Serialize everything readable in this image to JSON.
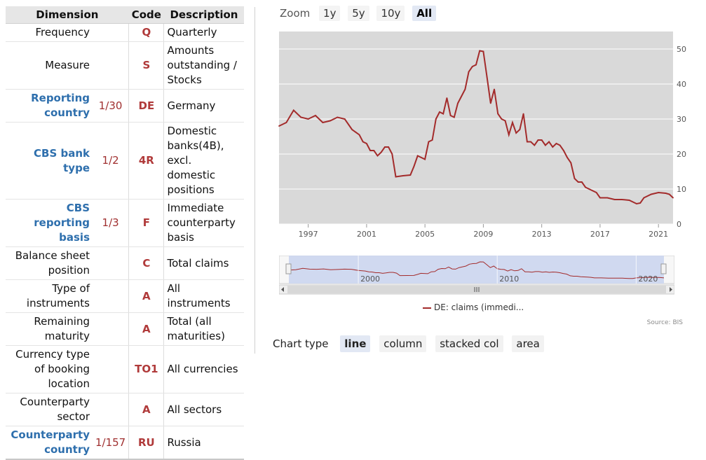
{
  "table": {
    "headers": {
      "dimension": "Dimension",
      "code": "Code",
      "description": "Description"
    },
    "rows": [
      {
        "dimension": "Frequency",
        "position": "",
        "code": "Q",
        "description": "Quarterly",
        "link": false
      },
      {
        "dimension": "Measure",
        "position": "",
        "code": "S",
        "description": "Amounts outstanding / Stocks",
        "link": false
      },
      {
        "dimension": "Reporting country",
        "position": "1/30",
        "code": "DE",
        "description": "Germany",
        "link": true
      },
      {
        "dimension": "CBS bank type",
        "position": "1/2",
        "code": "4R",
        "description": "Domestic banks(4B), excl. domestic positions",
        "link": true
      },
      {
        "dimension": "CBS reporting basis",
        "position": "1/3",
        "code": "F",
        "description": "Immediate counterparty basis",
        "link": true
      },
      {
        "dimension": "Balance sheet position",
        "position": "",
        "code": "C",
        "description": "Total claims",
        "link": false
      },
      {
        "dimension": "Type of instruments",
        "position": "",
        "code": "A",
        "description": "All instruments",
        "link": false
      },
      {
        "dimension": "Remaining maturity",
        "position": "",
        "code": "A",
        "description": "Total (all maturities)",
        "link": false
      },
      {
        "dimension": "Currency type of booking location",
        "position": "",
        "code": "TO1",
        "description": "All currencies",
        "link": false
      },
      {
        "dimension": "Counterparty sector",
        "position": "",
        "code": "A",
        "description": "All sectors",
        "link": false
      },
      {
        "dimension": "Counterparty country",
        "position": "1/157",
        "code": "RU",
        "description": "Russia",
        "link": true
      }
    ]
  },
  "zoom": {
    "label": "Zoom",
    "buttons": [
      "1y",
      "5y",
      "10y",
      "All"
    ],
    "active": "All"
  },
  "chart_data": {
    "type": "line",
    "series": [
      {
        "name": "DE: claims (immedi...",
        "color": "#a32b2b",
        "points": [
          [
            1995.0,
            28.0
          ],
          [
            1995.5,
            29.0
          ],
          [
            1996.0,
            32.5
          ],
          [
            1996.5,
            30.5
          ],
          [
            1997.0,
            30.0
          ],
          [
            1997.5,
            31.0
          ],
          [
            1998.0,
            29.0
          ],
          [
            1998.5,
            29.5
          ],
          [
            1999.0,
            30.5
          ],
          [
            1999.5,
            30.0
          ],
          [
            2000.0,
            27.0
          ],
          [
            2000.5,
            25.5
          ],
          [
            2000.75,
            23.5
          ],
          [
            2001.0,
            23.0
          ],
          [
            2001.25,
            21.0
          ],
          [
            2001.5,
            21.0
          ],
          [
            2001.75,
            19.5
          ],
          [
            2002.0,
            20.5
          ],
          [
            2002.25,
            22.0
          ],
          [
            2002.5,
            22.0
          ],
          [
            2002.75,
            20.0
          ],
          [
            2003.0,
            13.5
          ],
          [
            2003.5,
            13.8
          ],
          [
            2004.0,
            14.0
          ],
          [
            2004.25,
            16.5
          ],
          [
            2004.5,
            19.5
          ],
          [
            2004.75,
            19.0
          ],
          [
            2005.0,
            18.5
          ],
          [
            2005.25,
            23.5
          ],
          [
            2005.5,
            24.0
          ],
          [
            2005.75,
            30.0
          ],
          [
            2006.0,
            32.0
          ],
          [
            2006.25,
            31.5
          ],
          [
            2006.5,
            36.0
          ],
          [
            2006.75,
            31.0
          ],
          [
            2007.0,
            30.5
          ],
          [
            2007.25,
            34.5
          ],
          [
            2007.5,
            36.5
          ],
          [
            2007.75,
            38.5
          ],
          [
            2008.0,
            43.5
          ],
          [
            2008.25,
            45.0
          ],
          [
            2008.5,
            45.5
          ],
          [
            2008.75,
            49.5
          ],
          [
            2009.0,
            49.3
          ],
          [
            2009.25,
            42.0
          ],
          [
            2009.5,
            34.5
          ],
          [
            2009.75,
            38.5
          ],
          [
            2010.0,
            31.5
          ],
          [
            2010.25,
            30.0
          ],
          [
            2010.5,
            29.5
          ],
          [
            2010.75,
            25.5
          ],
          [
            2011.0,
            29.0
          ],
          [
            2011.25,
            26.0
          ],
          [
            2011.5,
            27.0
          ],
          [
            2011.75,
            31.5
          ],
          [
            2012.0,
            23.5
          ],
          [
            2012.25,
            23.5
          ],
          [
            2012.5,
            22.5
          ],
          [
            2012.75,
            24.0
          ],
          [
            2013.0,
            24.0
          ],
          [
            2013.25,
            22.5
          ],
          [
            2013.5,
            23.5
          ],
          [
            2013.75,
            22.0
          ],
          [
            2014.0,
            23.0
          ],
          [
            2014.25,
            22.5
          ],
          [
            2014.5,
            21.0
          ],
          [
            2014.75,
            19.0
          ],
          [
            2015.0,
            17.5
          ],
          [
            2015.25,
            13.0
          ],
          [
            2015.5,
            12.0
          ],
          [
            2015.75,
            12.0
          ],
          [
            2016.0,
            10.5
          ],
          [
            2016.5,
            9.5
          ],
          [
            2016.75,
            9.0
          ],
          [
            2017.0,
            7.5
          ],
          [
            2017.5,
            7.5
          ],
          [
            2018.0,
            7.0
          ],
          [
            2018.5,
            7.0
          ],
          [
            2019.0,
            6.8
          ],
          [
            2019.5,
            5.8
          ],
          [
            2019.75,
            6.0
          ],
          [
            2020.0,
            7.5
          ],
          [
            2020.5,
            8.5
          ],
          [
            2021.0,
            9.0
          ],
          [
            2021.5,
            8.8
          ],
          [
            2021.75,
            8.5
          ],
          [
            2022.0,
            7.5
          ]
        ]
      }
    ],
    "xlim": [
      1995.0,
      2022.0
    ],
    "ylim": [
      0,
      55
    ],
    "x_ticks": [
      "1997",
      "2001",
      "2005",
      "2009",
      "2013",
      "2017",
      "2021"
    ],
    "y_ticks": [
      "0",
      "10",
      "20",
      "30",
      "40",
      "50"
    ],
    "y_axis_side": "right",
    "grid": true,
    "navigator": {
      "ticks": [
        "2000",
        "2010",
        "2020"
      ]
    }
  },
  "legend": {
    "label": "DE: claims (immedi..."
  },
  "source": "Source: BIS",
  "chart_type": {
    "label": "Chart type",
    "buttons": [
      "line",
      "column",
      "stacked col",
      "area"
    ],
    "active": "line"
  },
  "colors": {
    "series": "#a32b2b",
    "plot_bg": "#d9d9d9",
    "link": "#2e6fad",
    "code": "#b03a3a"
  }
}
